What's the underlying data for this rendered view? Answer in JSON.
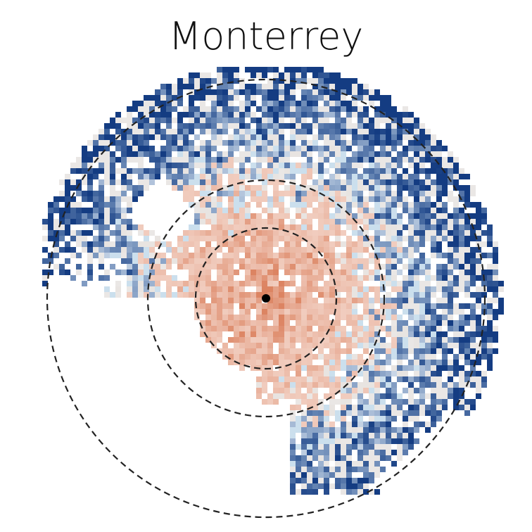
{
  "title": "Monterrey"
}
